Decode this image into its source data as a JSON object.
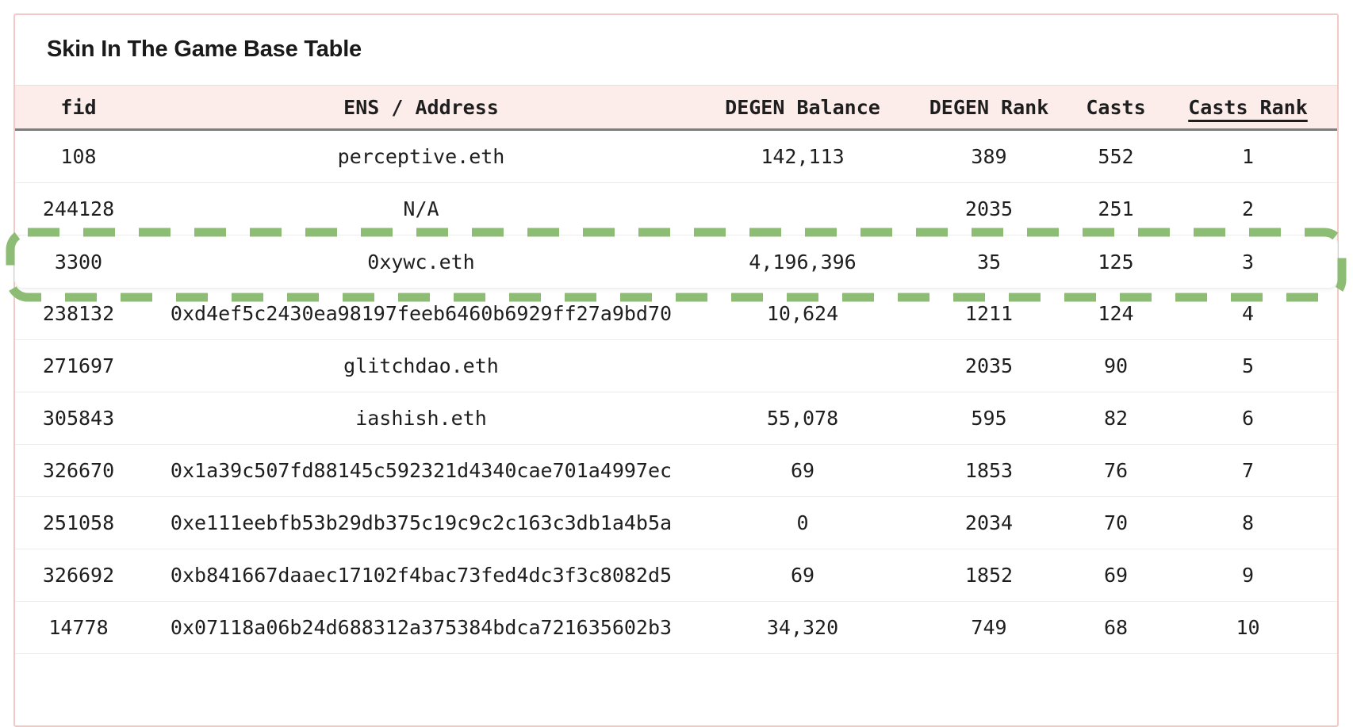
{
  "title": "Skin In The Game Base Table",
  "table": {
    "columns": [
      {
        "key": "fid",
        "label": "fid",
        "sorted": false
      },
      {
        "key": "ens-address",
        "label": "ENS / Address",
        "sorted": false
      },
      {
        "key": "degen-balance",
        "label": "DEGEN Balance",
        "sorted": false
      },
      {
        "key": "degen-rank",
        "label": "DEGEN Rank",
        "sorted": false
      },
      {
        "key": "casts",
        "label": "Casts",
        "sorted": false
      },
      {
        "key": "casts-rank",
        "label": "Casts Rank",
        "sorted": true
      }
    ],
    "rows": [
      [
        "108",
        "perceptive.eth",
        "142,113",
        "389",
        "552",
        "1"
      ],
      [
        "244128",
        "N/A",
        "",
        "2035",
        "251",
        "2"
      ],
      [
        "3300",
        "0xywc.eth",
        "4,196,396",
        "35",
        "125",
        "3"
      ],
      [
        "238132",
        "0xd4ef5c2430ea98197feeb6460b6929ff27a9bd70",
        "10,624",
        "1211",
        "124",
        "4"
      ],
      [
        "271697",
        "glitchdao.eth",
        "",
        "2035",
        "90",
        "5"
      ],
      [
        "305843",
        "iashish.eth",
        "55,078",
        "595",
        "82",
        "6"
      ],
      [
        "326670",
        "0x1a39c507fd88145c592321d4340cae701a4997ec",
        "69",
        "1853",
        "76",
        "7"
      ],
      [
        "251058",
        "0xe111eebfb53b29db375c19c9c2c163c3db1a4b5a",
        "0",
        "2034",
        "70",
        "8"
      ],
      [
        "326692",
        "0xb841667daaec17102f4bac73fed4dc3f3c8082d5",
        "69",
        "1852",
        "69",
        "9"
      ],
      [
        "14778",
        "0x07118a06b24d688312a375384bdca721635602b3",
        "34,320",
        "749",
        "68",
        "10"
      ]
    ],
    "highlighted_row_index": 2
  },
  "colors": {
    "highlight_green": "#8dbd75",
    "card_border_pink": "#f1c9c5",
    "header_bg_pink": "#fcedeb",
    "header_divider_gray": "#7d7d7d"
  }
}
